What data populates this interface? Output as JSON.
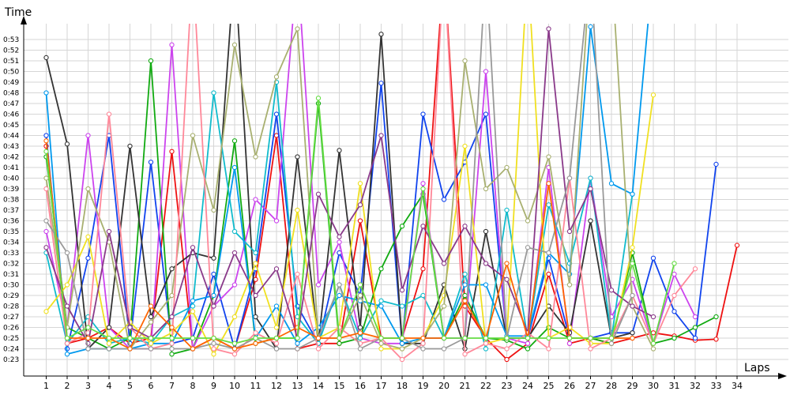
{
  "chart_data": {
    "type": "line",
    "title": "",
    "xlabel": "Laps",
    "ylabel": "Time",
    "xlim": [
      0.5,
      34
    ],
    "ylim": [
      22.5,
      54.4
    ],
    "grid": true,
    "legend": "none",
    "x_ticks": [
      "1",
      "2",
      "3",
      "4",
      "5",
      "6",
      "7",
      "8",
      "9",
      "10",
      "11",
      "12",
      "13",
      "14",
      "15",
      "16",
      "17",
      "18",
      "19",
      "20",
      "21",
      "22",
      "23",
      "24",
      "25",
      "26",
      "27",
      "28",
      "29",
      "30",
      "31",
      "32",
      "33",
      "34"
    ],
    "y_ticks": [
      "0:23",
      "0:24",
      "0:25",
      "0:26",
      "0:27",
      "0:28",
      "0:29",
      "0:30",
      "0:31",
      "0:32",
      "0:33",
      "0:34",
      "0:35",
      "0:36",
      "0:37",
      "0:38",
      "0:39",
      "0:40",
      "0:41",
      "0:42",
      "0:43",
      "0:44",
      "0:45",
      "0:46",
      "0:47",
      "0:48",
      "0:49",
      "0:50",
      "0:51",
      "0:52",
      "0:53"
    ],
    "y_tick_values": [
      23,
      24,
      25,
      26,
      27,
      28,
      29,
      30,
      31,
      32,
      33,
      34,
      35,
      36,
      37,
      38,
      39,
      40,
      41,
      42,
      43,
      44,
      45,
      46,
      47,
      48,
      49,
      50,
      51,
      52,
      53
    ],
    "series": [
      {
        "color": "#ee1111",
        "x": [
          1,
          2,
          3,
          4,
          5,
          6,
          7,
          8,
          9,
          10,
          11,
          12,
          13,
          14,
          15,
          16,
          17,
          18,
          19,
          20,
          21,
          22,
          23,
          24,
          25,
          26,
          27,
          28,
          29,
          30,
          31,
          32,
          33,
          34
        ],
        "y": [
          43,
          24.5,
          25,
          26,
          24.5,
          25,
          42.5,
          24,
          25,
          24,
          30.5,
          44,
          24,
          24.5,
          24.5,
          36,
          25,
          25,
          31.5,
          60,
          28,
          25,
          23,
          24.5,
          31,
          24.5,
          25,
          24.5,
          25,
          25.5,
          25.2,
          24.8,
          24.9,
          33.7
        ]
      },
      {
        "color": "#1144ee",
        "x": [
          1,
          2,
          3,
          4,
          5,
          6,
          7,
          8,
          9,
          10,
          11,
          12,
          13,
          14,
          15,
          16,
          17,
          18,
          19,
          20,
          21,
          22,
          23,
          24,
          25,
          26,
          27,
          28,
          29,
          30,
          31,
          32,
          33
        ],
        "y": [
          44,
          24,
          32.5,
          44,
          24.5,
          41.5,
          24.5,
          25,
          31,
          24,
          31.5,
          46,
          28,
          24.5,
          33,
          29,
          48.9,
          24.5,
          46,
          38,
          41.5,
          46,
          25,
          25,
          32.5,
          25,
          25,
          25.5,
          25.5,
          32.5,
          27.5,
          25,
          41.3
        ]
      },
      {
        "color": "#11aa11",
        "x": [
          1,
          2,
          3,
          4,
          5,
          6,
          7,
          8,
          9,
          10,
          11,
          12,
          13,
          14,
          15,
          16,
          17,
          18,
          19,
          20,
          21,
          22,
          23,
          24,
          25,
          26,
          27,
          28,
          29,
          30,
          31,
          32,
          33
        ],
        "y": [
          42,
          26,
          25,
          24,
          25,
          51,
          23.5,
          24,
          29,
          43.5,
          24.5,
          25,
          25,
          47,
          24.5,
          25,
          31.5,
          35.5,
          38.5,
          25,
          29,
          25,
          24.8,
          24,
          26,
          25,
          25,
          24.5,
          33,
          24.5,
          25,
          26,
          27
        ]
      },
      {
        "color": "#cc44ee",
        "x": [
          1,
          2,
          3,
          4,
          5,
          6,
          7,
          8,
          9,
          10,
          11,
          12,
          13,
          14,
          15,
          16,
          17,
          18,
          19,
          20,
          21,
          22,
          23,
          24,
          25,
          26,
          27,
          28,
          29,
          30,
          31,
          32
        ],
        "y": [
          35,
          26,
          44,
          26,
          24,
          24,
          52.5,
          24,
          28,
          30,
          38,
          36,
          60,
          30,
          34,
          25,
          24.5,
          24.5,
          39.5,
          25,
          25,
          50,
          25,
          24.5,
          41,
          24.5,
          40,
          27,
          30.5,
          24.5,
          31,
          27
        ]
      },
      {
        "color": "#333333",
        "x": [
          1,
          2,
          3,
          4,
          5,
          6,
          7,
          8,
          9,
          10,
          11,
          12,
          13,
          14,
          15,
          16,
          17,
          18,
          19,
          20,
          21,
          22,
          23,
          24,
          25,
          26,
          27,
          28,
          29
        ],
        "y": [
          51.3,
          43.2,
          24,
          26,
          43,
          27,
          31.5,
          33,
          32.5,
          60,
          27,
          24,
          42,
          24.5,
          42.6,
          26,
          53.5,
          24.5,
          24.5,
          30,
          24,
          35,
          25,
          25,
          28,
          25.5,
          36,
          25,
          25.5
        ]
      },
      {
        "color": "#11bbcc",
        "x": [
          1,
          2,
          3,
          4,
          5,
          6,
          7,
          8,
          9,
          10,
          11,
          12,
          13,
          14,
          15,
          16,
          17,
          18,
          19,
          20,
          21,
          22,
          23,
          24,
          25,
          26,
          27,
          28,
          29
        ],
        "y": [
          33,
          24.5,
          27,
          24.5,
          25,
          24.5,
          27,
          28,
          48,
          35,
          33,
          49,
          27,
          24.5,
          30,
          25,
          28.5,
          28,
          29,
          25,
          31,
          24,
          37,
          25,
          37.5,
          32,
          40,
          25,
          38.5
        ]
      },
      {
        "color": "#0099ee",
        "x": [
          1,
          2,
          3,
          4,
          5,
          6,
          7,
          8,
          9,
          10,
          11,
          12,
          13,
          14,
          15,
          16,
          17,
          18,
          19,
          20,
          21,
          22,
          23,
          24,
          25,
          26,
          27,
          28,
          29,
          30
        ],
        "y": [
          48,
          23.5,
          24,
          24,
          24,
          24.5,
          24.5,
          28.5,
          29,
          41,
          25,
          28,
          24.5,
          26,
          29,
          28.5,
          28,
          24.5,
          25,
          25,
          30,
          30,
          25.2,
          25.2,
          33,
          31,
          54.2,
          39.5,
          38.5,
          60
        ]
      },
      {
        "color": "#f0e020",
        "x": [
          1,
          2,
          3,
          4,
          5,
          6,
          7,
          8,
          9,
          10,
          11,
          12,
          13,
          14,
          15,
          16,
          17,
          18,
          19,
          20,
          21,
          22,
          23,
          24,
          25,
          26,
          27,
          28,
          29,
          30
        ],
        "y": [
          27.5,
          30,
          34.5,
          24.5,
          26.5,
          24.5,
          25.5,
          27.5,
          23.5,
          27,
          32,
          26,
          37,
          25,
          26,
          39.5,
          24,
          24,
          25,
          29,
          43,
          24.5,
          25,
          60,
          25,
          26,
          24.5,
          24.5,
          33.5,
          47.8
        ]
      },
      {
        "color": "#a8b070",
        "x": [
          1,
          2,
          3,
          4,
          5,
          6,
          7,
          8,
          9,
          10,
          11,
          12,
          13,
          14,
          15,
          16,
          17,
          18,
          19,
          20,
          21,
          22,
          23,
          24,
          25,
          26,
          27,
          28,
          29,
          30
        ],
        "y": [
          40,
          26,
          39,
          34,
          24,
          26.5,
          29,
          44,
          37,
          52.5,
          42,
          49.5,
          54,
          25,
          25,
          29,
          24.5,
          24,
          25,
          28,
          51,
          39,
          41,
          36,
          42,
          30,
          60,
          60,
          28,
          24
        ]
      },
      {
        "color": "#ff8899",
        "x": [
          1,
          2,
          3,
          4,
          5,
          6,
          7,
          8,
          9,
          10,
          11,
          12,
          13,
          14,
          15,
          16,
          17,
          18,
          19,
          20,
          21,
          22,
          23,
          24,
          25,
          26,
          27,
          28,
          29,
          30,
          31,
          32
        ],
        "y": [
          39,
          24.5,
          25.5,
          46,
          26,
          24,
          24.5,
          60,
          24,
          23.5,
          25.5,
          24.5,
          31,
          24,
          26,
          24.5,
          25,
          23,
          24.5,
          60,
          23.5,
          24.5,
          24,
          25.5,
          24,
          40,
          24,
          25,
          29,
          24.5,
          29,
          31.5
        ]
      },
      {
        "color": "#8a3a8a",
        "x": [
          1,
          2,
          3,
          4,
          5,
          6,
          7,
          8,
          9,
          10,
          11,
          12,
          13,
          14,
          15,
          16,
          17,
          18,
          19,
          20,
          21,
          22,
          23,
          24,
          25,
          26,
          27,
          28,
          29,
          30
        ],
        "y": [
          33.5,
          28,
          24.5,
          35,
          26,
          25,
          27,
          33.5,
          28,
          33,
          29,
          31.5,
          25,
          38.5,
          34.5,
          37.5,
          44,
          29.5,
          35.5,
          32,
          35.5,
          32,
          30.5,
          25.5,
          54,
          35,
          39,
          29.5,
          28,
          27
        ]
      },
      {
        "color": "#999999",
        "x": [
          1,
          2,
          3,
          4,
          5,
          6,
          7,
          8,
          9,
          10,
          11,
          12,
          13,
          14,
          15,
          16,
          17,
          18,
          19,
          20,
          21,
          22,
          23,
          24,
          25,
          26,
          27,
          28,
          29
        ],
        "y": [
          36,
          33,
          24,
          24,
          24,
          24,
          24,
          24,
          24.5,
          24,
          25,
          24,
          24,
          25,
          30,
          24,
          25,
          25,
          24,
          24,
          25,
          60,
          25,
          33.5,
          33,
          40,
          60,
          24.5,
          29
        ]
      },
      {
        "color": "#ff6600",
        "x": [
          1,
          2,
          3,
          4,
          5,
          6,
          7,
          8,
          9,
          10,
          11,
          12,
          13,
          14,
          15,
          16,
          17,
          18,
          19,
          20,
          21,
          22,
          23,
          24,
          25,
          26,
          27,
          28,
          29
        ],
        "y": [
          43.5,
          25,
          25,
          25,
          24,
          28,
          26,
          24,
          25,
          24,
          24.5,
          25,
          26,
          25,
          25,
          25.5,
          25,
          25,
          25,
          25,
          28.5,
          25,
          32,
          25,
          39.5,
          25,
          25,
          25,
          25
        ]
      },
      {
        "color": "#66dd44",
        "x": [
          1,
          2,
          3,
          4,
          5,
          6,
          7,
          8,
          9,
          10,
          11,
          12,
          13,
          14,
          15,
          16,
          17,
          18,
          19,
          20,
          21,
          22,
          23,
          24,
          25,
          26,
          27,
          28,
          29,
          30,
          31
        ],
        "y": [
          42.5,
          25,
          26,
          25,
          25,
          25,
          25,
          25,
          25,
          24.5,
          25,
          25,
          25,
          47.5,
          25,
          30,
          25,
          25,
          39,
          25,
          25,
          25,
          25,
          25,
          25,
          25,
          25,
          25,
          32,
          24.5,
          32
        ]
      }
    ]
  }
}
